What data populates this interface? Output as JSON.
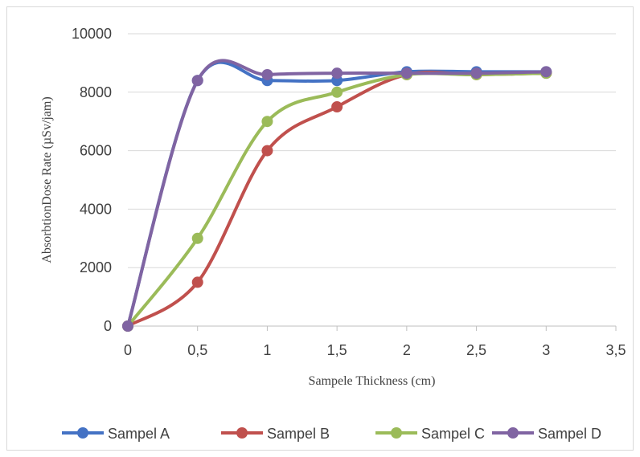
{
  "chart_data": {
    "type": "line",
    "smooth": true,
    "xlabel": "Sampele Thickness (cm)",
    "ylabel": "AbsorbtionDose Rate  (µSv/jam)",
    "xlim": [
      0,
      3.5
    ],
    "ylim": [
      0,
      10000
    ],
    "x_ticks": [
      0,
      0.5,
      1,
      1.5,
      2,
      2.5,
      3,
      3.5
    ],
    "x_tick_labels": [
      "0",
      "0,5",
      "1",
      "1,5",
      "2",
      "2,5",
      "3",
      "3,5"
    ],
    "y_ticks": [
      0,
      2000,
      4000,
      6000,
      8000,
      10000
    ],
    "y_tick_labels": [
      "0",
      "2000",
      "4000",
      "6000",
      "8000",
      "10000"
    ],
    "grid": "horizontal",
    "legend": "bottom",
    "x": [
      0,
      0.5,
      1,
      1.5,
      2,
      2.5,
      3
    ],
    "series": [
      {
        "name": "Sampel A",
        "color": "#4472c4",
        "values": [
          0,
          8400,
          8400,
          8400,
          8700,
          8700,
          8700
        ]
      },
      {
        "name": "Sampel  B",
        "color": "#c0504d",
        "values": [
          0,
          1500,
          6000,
          7500,
          8600,
          8600,
          8650
        ]
      },
      {
        "name": "Sampel C",
        "color": "#9bbb59",
        "values": [
          0,
          3000,
          7000,
          8000,
          8600,
          8600,
          8650
        ]
      },
      {
        "name": "Sampel D",
        "color": "#8064a2",
        "values": [
          0,
          8400,
          8600,
          8650,
          8650,
          8650,
          8700
        ]
      }
    ]
  }
}
